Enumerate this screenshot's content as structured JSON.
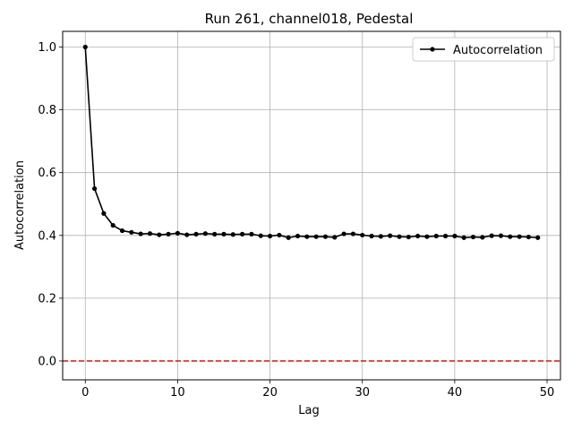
{
  "chart_data": {
    "type": "line",
    "title": "Run 261, channel018, Pedestal",
    "xlabel": "Lag",
    "ylabel": "Autocorrelation",
    "xlim": [
      -2.45,
      51.45
    ],
    "ylim": [
      -0.06,
      1.05
    ],
    "xticks": [
      0,
      10,
      20,
      30,
      40,
      50
    ],
    "yticks": [
      0.0,
      0.2,
      0.4,
      0.6,
      0.8,
      1.0
    ],
    "xtick_labels": [
      "0",
      "10",
      "20",
      "30",
      "40",
      "50"
    ],
    "ytick_labels": [
      "0.0",
      "0.2",
      "0.4",
      "0.6",
      "0.8",
      "1.0"
    ],
    "grid": true,
    "legend": "top-right",
    "series": [
      {
        "name": "Autocorrelation",
        "color": "#000000",
        "marker": "circle",
        "x": [
          0,
          1,
          2,
          3,
          4,
          5,
          6,
          7,
          8,
          9,
          10,
          11,
          12,
          13,
          14,
          15,
          16,
          17,
          18,
          19,
          20,
          21,
          22,
          23,
          24,
          25,
          26,
          27,
          28,
          29,
          30,
          31,
          32,
          33,
          34,
          35,
          36,
          37,
          38,
          39,
          40,
          41,
          42,
          43,
          44,
          45,
          46,
          47,
          48,
          49
        ],
        "y": [
          1.0,
          0.549,
          0.47,
          0.432,
          0.415,
          0.41,
          0.405,
          0.406,
          0.402,
          0.404,
          0.407,
          0.402,
          0.404,
          0.406,
          0.404,
          0.404,
          0.403,
          0.404,
          0.404,
          0.399,
          0.398,
          0.401,
          0.393,
          0.398,
          0.396,
          0.396,
          0.396,
          0.394,
          0.405,
          0.405,
          0.401,
          0.398,
          0.397,
          0.399,
          0.396,
          0.395,
          0.398,
          0.396,
          0.398,
          0.398,
          0.398,
          0.393,
          0.395,
          0.394,
          0.399,
          0.399,
          0.396,
          0.396,
          0.395,
          0.393
        ]
      }
    ],
    "reference_line": {
      "y": 0.0,
      "color": "#d62728",
      "style": "dashed"
    }
  }
}
